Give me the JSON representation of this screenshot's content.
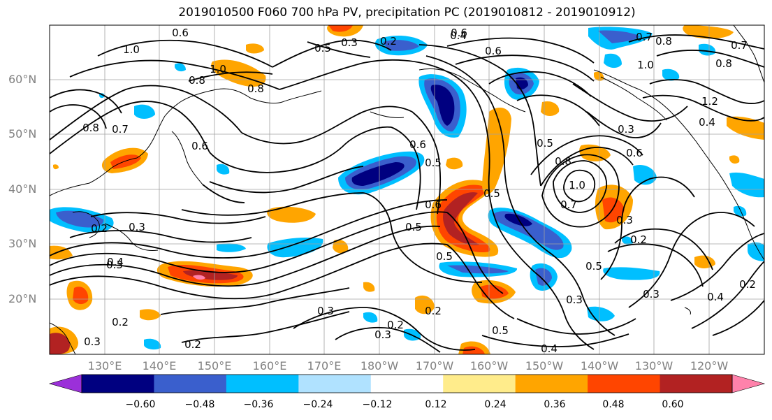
{
  "title": "2019010500 F060 700 hPa PV, precipitation PC (2019010812 - 2019010912)",
  "lat_labels": [
    "60°N",
    "50°N",
    "40°N",
    "30°N",
    "20°N"
  ],
  "lon_labels": [
    "130°E",
    "140°E",
    "150°E",
    "160°E",
    "170°E",
    "180°W",
    "170°W",
    "160°W",
    "150°W",
    "140°W",
    "130°W",
    "120°W"
  ],
  "colorbar": {
    "ticks": [
      "−0.60",
      "−0.48",
      "−0.36",
      "−0.24",
      "−0.12",
      "0.12",
      "0.24",
      "0.36",
      "0.48",
      "0.60"
    ],
    "colors": [
      "#9b30d9",
      "#000080",
      "#3a5fcd",
      "#00bfff",
      "#b0e2ff",
      "#ffffff",
      "#ffec8b",
      "#ffa500",
      "#ff4500",
      "#b22222",
      "#ff82ab"
    ]
  },
  "contour_labels": [
    "0.6",
    "1.0",
    "0.8",
    "1.0",
    "0.8",
    "0.5",
    "0.7",
    "0.8",
    "0.6",
    "0.3",
    "0.2",
    "0.4",
    "0.6",
    "0.7",
    "0.8",
    "1.0",
    "1.2",
    "0.3",
    "0.4",
    "0.8",
    "0.5",
    "0.5",
    "0.6",
    "0.3",
    "0.6",
    "0.8",
    "1.0",
    "0.7",
    "0.5",
    "0.6",
    "0.5",
    "0.3",
    "0.3",
    "0.4",
    "0.5",
    "0.3",
    "0.2",
    "0.2",
    "0.5",
    "0.3",
    "0.2",
    "0.2",
    "0.5",
    "0.4",
    "0.2",
    "0.3",
    "0.3",
    "0.2",
    "0.2",
    "0.3",
    "0.4",
    "0.6",
    "0.7"
  ]
}
